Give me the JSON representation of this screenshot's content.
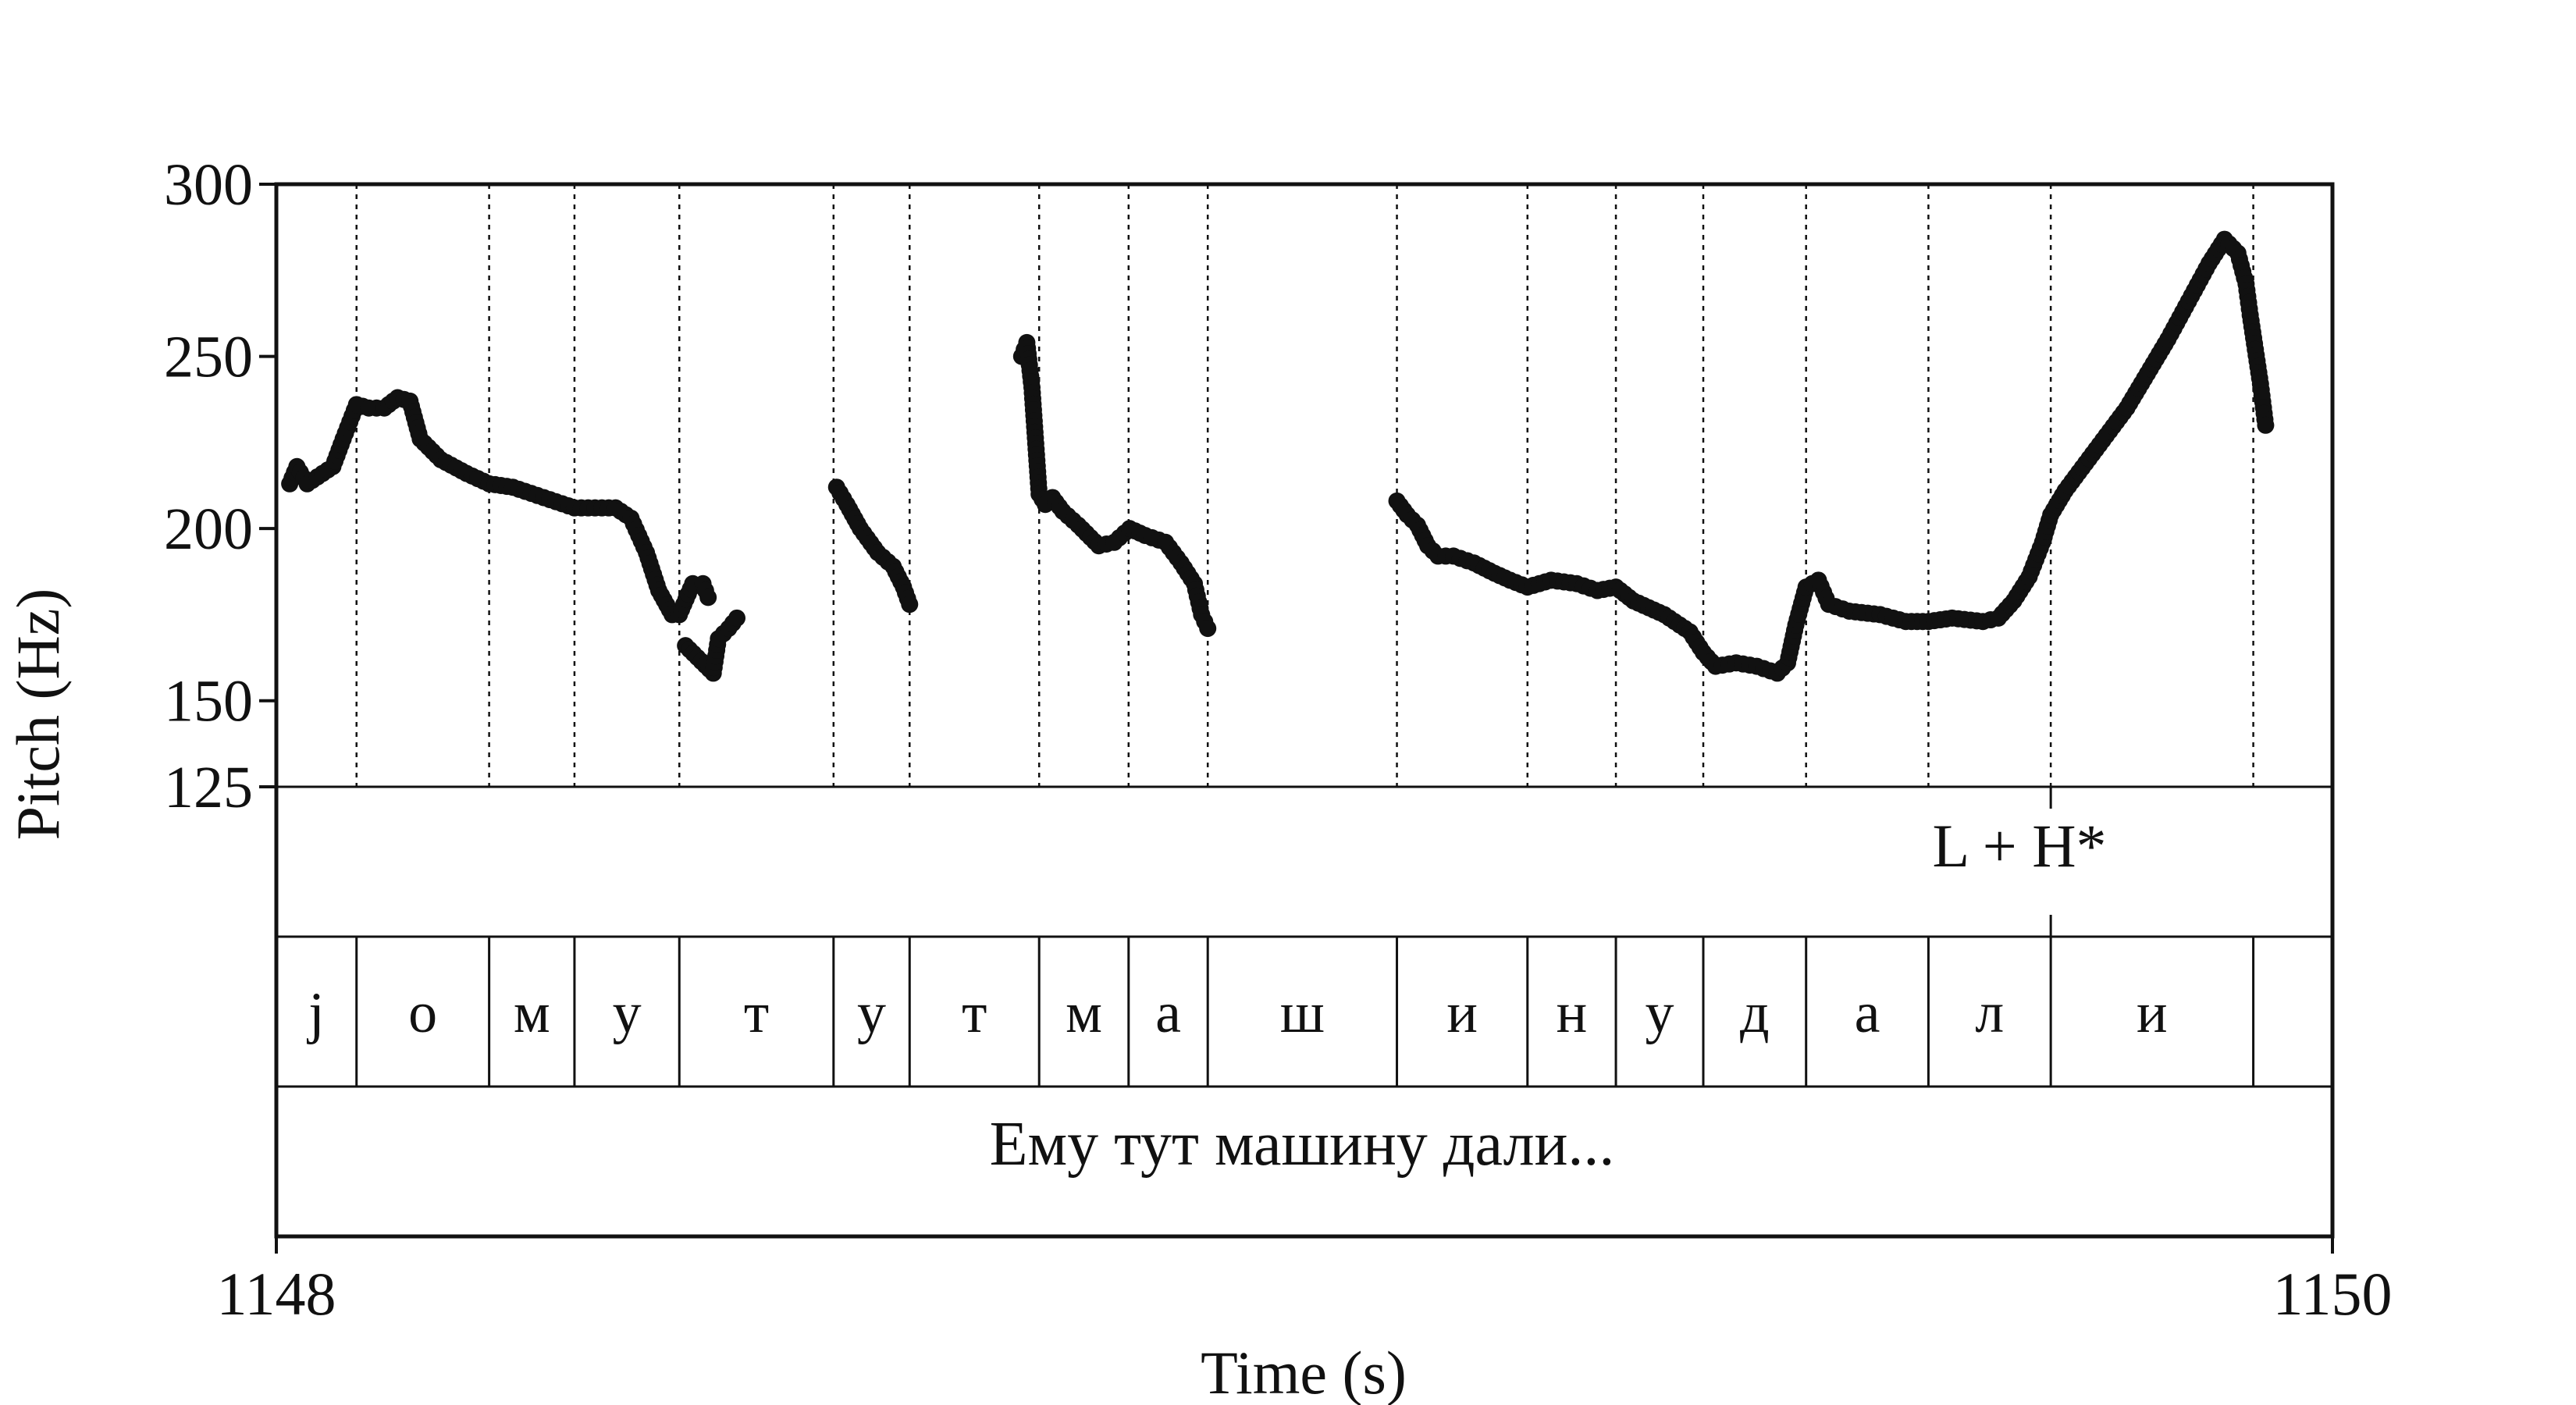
{
  "chart_data": {
    "type": "scatter",
    "xlabel": "Time (s)",
    "ylabel": "Pitch (Hz)",
    "xlim": [
      1148,
      1150
    ],
    "ylim": [
      125,
      300
    ],
    "x_ticks": [
      {
        "value": 1148,
        "label": "1148"
      },
      {
        "value": 1150,
        "label": "1150"
      }
    ],
    "y_ticks": [
      {
        "value": 125,
        "label": "125"
      },
      {
        "value": 150,
        "label": "150"
      },
      {
        "value": 200,
        "label": "200"
      },
      {
        "value": 250,
        "label": "250"
      },
      {
        "value": 300,
        "label": "300"
      }
    ],
    "segment_boundaries": [
      1148.0,
      1148.078,
      1148.207,
      1148.29,
      1148.392,
      1148.542,
      1148.616,
      1148.742,
      1148.829,
      1148.906,
      1149.09,
      1149.217,
      1149.303,
      1149.388,
      1149.488,
      1149.607,
      1149.726,
      1149.923,
      1150.0
    ],
    "tones": [
      {
        "label": "L + H*",
        "time": 1149.726
      }
    ],
    "segments": [
      {
        "label": "j",
        "start": 1148.0,
        "end": 1148.078
      },
      {
        "label": "о",
        "start": 1148.078,
        "end": 1148.207
      },
      {
        "label": "м",
        "start": 1148.207,
        "end": 1148.29
      },
      {
        "label": "у",
        "start": 1148.29,
        "end": 1148.392
      },
      {
        "label": "т",
        "start": 1148.392,
        "end": 1148.542
      },
      {
        "label": "у",
        "start": 1148.542,
        "end": 1148.616
      },
      {
        "label": "т",
        "start": 1148.616,
        "end": 1148.742
      },
      {
        "label": "м",
        "start": 1148.742,
        "end": 1148.829
      },
      {
        "label": "а",
        "start": 1148.829,
        "end": 1148.906
      },
      {
        "label": "ш",
        "start": 1148.906,
        "end": 1149.09
      },
      {
        "label": "и",
        "start": 1149.09,
        "end": 1149.217
      },
      {
        "label": "н",
        "start": 1149.217,
        "end": 1149.303
      },
      {
        "label": "у",
        "start": 1149.303,
        "end": 1149.388
      },
      {
        "label": "д",
        "start": 1149.388,
        "end": 1149.488
      },
      {
        "label": "а",
        "start": 1149.488,
        "end": 1149.607
      },
      {
        "label": "л",
        "start": 1149.607,
        "end": 1149.726
      },
      {
        "label": "и",
        "start": 1149.726,
        "end": 1149.923
      },
      {
        "label": "",
        "start": 1149.923,
        "end": 1150.0
      }
    ],
    "utterance": {
      "label": "Ему тут машину дали...",
      "start": 1148.0,
      "end": 1150.0
    },
    "pitch_contour": [
      [
        [
          1148.013,
          213
        ],
        [
          1148.02,
          218
        ],
        [
          1148.03,
          213
        ],
        [
          1148.045,
          216
        ],
        [
          1148.055,
          218
        ],
        [
          1148.065,
          226
        ],
        [
          1148.078,
          236
        ],
        [
          1148.09,
          235
        ],
        [
          1148.105,
          235
        ],
        [
          1148.118,
          238
        ],
        [
          1148.13,
          237
        ],
        [
          1148.14,
          226
        ],
        [
          1148.16,
          220
        ],
        [
          1148.185,
          216
        ],
        [
          1148.207,
          213
        ],
        [
          1148.23,
          212
        ],
        [
          1148.26,
          209
        ],
        [
          1148.29,
          206
        ],
        [
          1148.31,
          206
        ],
        [
          1148.33,
          206
        ],
        [
          1148.345,
          203
        ],
        [
          1148.36,
          193
        ],
        [
          1148.372,
          182
        ],
        [
          1148.385,
          175
        ],
        [
          1148.392,
          175
        ],
        [
          1148.405,
          184
        ],
        [
          1148.415,
          184
        ],
        [
          1148.42,
          180
        ]
      ],
      [
        [
          1148.398,
          166
        ],
        [
          1148.425,
          158
        ],
        [
          1148.43,
          168
        ],
        [
          1148.44,
          171
        ],
        [
          1148.448,
          174
        ]
      ],
      [
        [
          1148.545,
          212
        ],
        [
          1148.555,
          207
        ],
        [
          1148.568,
          200
        ],
        [
          1148.585,
          193
        ],
        [
          1148.6,
          189
        ],
        [
          1148.61,
          183
        ],
        [
          1148.616,
          178
        ]
      ],
      [
        [
          1148.725,
          250
        ],
        [
          1148.73,
          254
        ],
        [
          1148.735,
          241
        ],
        [
          1148.742,
          210
        ],
        [
          1148.748,
          207
        ],
        [
          1148.755,
          209
        ],
        [
          1148.765,
          205
        ],
        [
          1148.78,
          201
        ],
        [
          1148.8,
          195
        ],
        [
          1148.815,
          196
        ],
        [
          1148.83,
          200
        ],
        [
          1148.845,
          198
        ],
        [
          1148.865,
          196
        ],
        [
          1148.88,
          190
        ],
        [
          1148.893,
          184
        ],
        [
          1148.9,
          175
        ],
        [
          1148.906,
          171
        ]
      ],
      [
        [
          1149.09,
          208
        ],
        [
          1149.1,
          204
        ],
        [
          1149.11,
          201
        ],
        [
          1149.12,
          195
        ],
        [
          1149.13,
          192
        ],
        [
          1149.145,
          192
        ],
        [
          1149.165,
          190
        ],
        [
          1149.185,
          187
        ],
        [
          1149.2,
          185
        ],
        [
          1149.217,
          183
        ],
        [
          1149.24,
          185
        ],
        [
          1149.265,
          184
        ],
        [
          1149.285,
          182
        ],
        [
          1149.303,
          183
        ],
        [
          1149.32,
          179
        ],
        [
          1149.35,
          175
        ],
        [
          1149.375,
          170
        ],
        [
          1149.388,
          164
        ],
        [
          1149.4,
          160
        ],
        [
          1149.42,
          161
        ],
        [
          1149.44,
          160
        ],
        [
          1149.46,
          158
        ],
        [
          1149.47,
          161
        ],
        [
          1149.478,
          172
        ],
        [
          1149.488,
          183
        ],
        [
          1149.5,
          185
        ],
        [
          1149.51,
          178
        ],
        [
          1149.53,
          176
        ],
        [
          1149.56,
          175
        ],
        [
          1149.585,
          173
        ],
        [
          1149.607,
          173
        ],
        [
          1149.63,
          174
        ],
        [
          1149.66,
          173
        ],
        [
          1149.675,
          174
        ],
        [
          1149.69,
          179
        ],
        [
          1149.705,
          186
        ],
        [
          1149.718,
          196
        ],
        [
          1149.726,
          204
        ],
        [
          1149.74,
          211
        ],
        [
          1149.76,
          219
        ],
        [
          1149.78,
          227
        ],
        [
          1149.8,
          235
        ],
        [
          1149.82,
          245
        ],
        [
          1149.84,
          255
        ],
        [
          1149.86,
          266
        ],
        [
          1149.88,
          277
        ],
        [
          1149.895,
          284
        ],
        [
          1149.908,
          280
        ],
        [
          1149.916,
          271
        ],
        [
          1149.92,
          262
        ],
        [
          1149.925,
          252
        ],
        [
          1149.93,
          242
        ],
        [
          1149.935,
          230
        ]
      ]
    ]
  }
}
